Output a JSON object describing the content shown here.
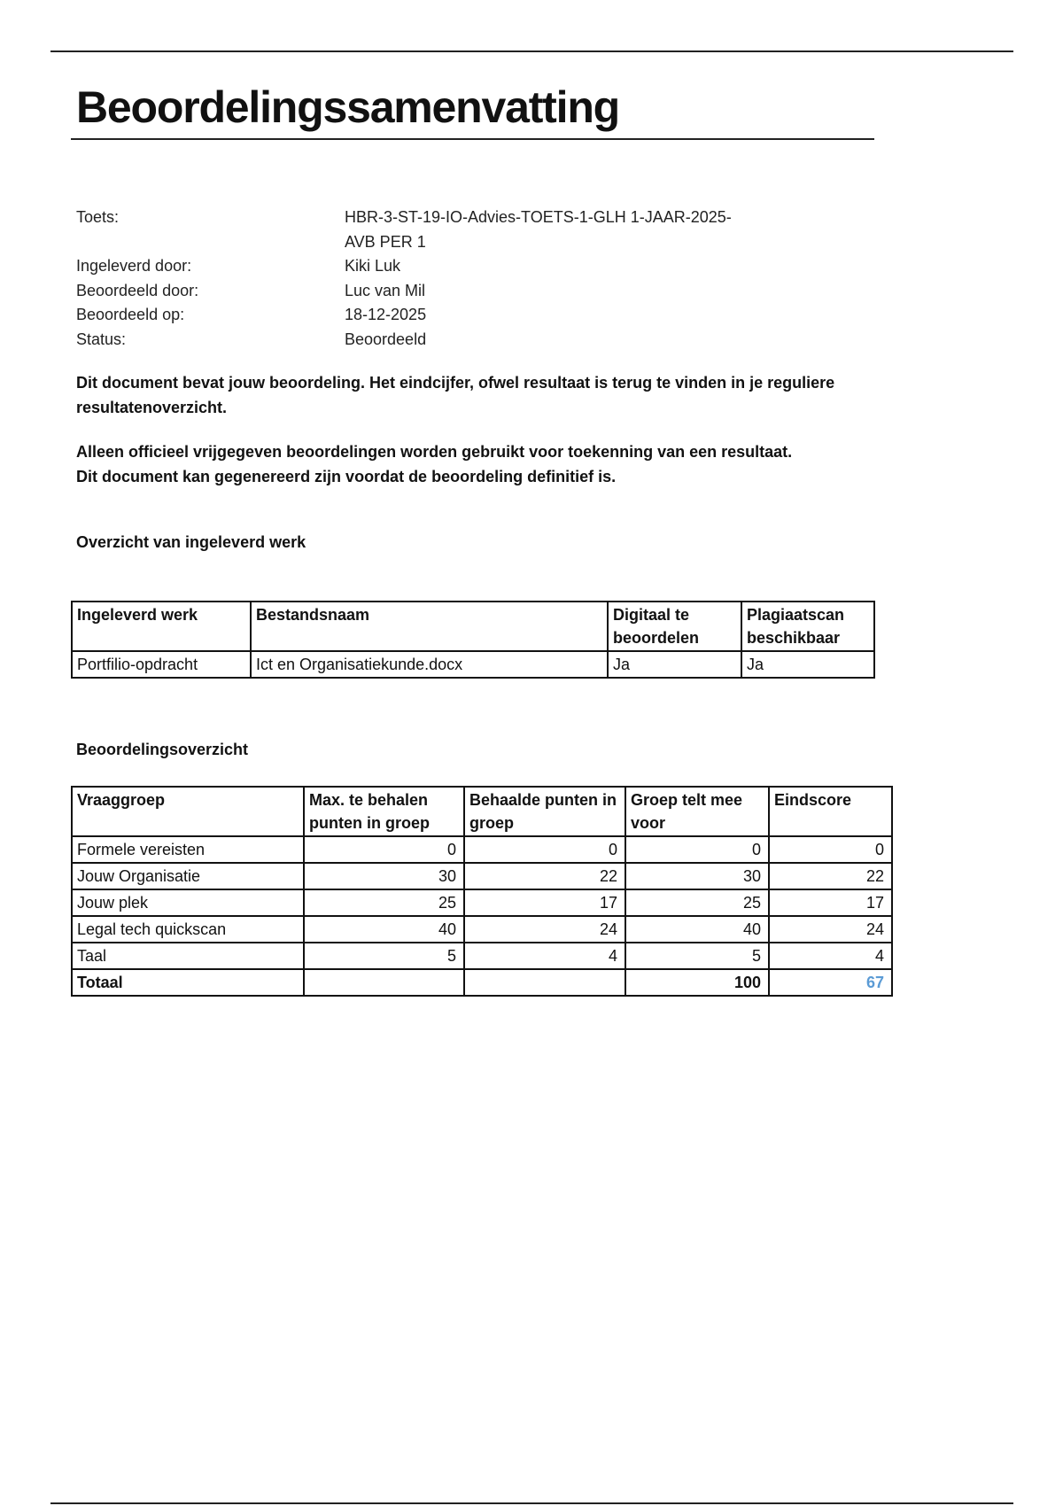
{
  "title": "Beoordelingssamenvatting",
  "info": [
    {
      "label": "Toets:",
      "value": "HBR-3-ST-19-IO-Advies-TOETS-1-GLH 1-JAAR-2025-AVB PER 1"
    },
    {
      "label": "Ingeleverd door:",
      "value": "Kiki Luk"
    },
    {
      "label": "Beoordeeld door:",
      "value": "Luc van Mil"
    },
    {
      "label": "Beoordeeld op:",
      "value": "18-12-2025"
    },
    {
      "label": "Status:",
      "value": "Beoordeeld"
    }
  ],
  "notice1": "Dit document bevat jouw beoordeling. Het eindcijfer, ofwel resultaat is terug te vinden in je reguliere resultatenoverzicht.",
  "notice2a": "Alleen officieel vrijgegeven beoordelingen worden gebruikt voor toekenning van een resultaat.",
  "notice2b": "Dit document kan gegenereerd zijn voordat de beoordeling definitief is.",
  "work": {
    "heading": "Overzicht van ingeleverd werk",
    "headers": [
      "Ingeleverd werk",
      "Bestandsnaam",
      "Digitaal te beoordelen",
      "Plagiaatscan beschikbaar"
    ],
    "rows": [
      [
        "Portfilio-opdracht",
        "Ict en Organisatiekunde.docx",
        "Ja",
        "Ja"
      ]
    ]
  },
  "grading": {
    "heading": "Beoordelingsoverzicht",
    "headers": [
      "Vraaggroep",
      "Max. te behalen punten in groep",
      "Behaalde punten in groep",
      "Groep telt mee voor",
      "Eindscore"
    ],
    "rows": [
      [
        "Formele vereisten",
        "0",
        "0",
        "0",
        "0"
      ],
      [
        "Jouw Organisatie",
        "30",
        "22",
        "30",
        "22"
      ],
      [
        "Jouw plek",
        "25",
        "17",
        "25",
        "17"
      ],
      [
        "Legal tech quickscan",
        "40",
        "24",
        "40",
        "24"
      ],
      [
        "Taal",
        "5",
        "4",
        "5",
        "4"
      ]
    ],
    "total": [
      "Totaal",
      "",
      "",
      "100",
      "67"
    ],
    "score_color": "#5b9bd5"
  }
}
